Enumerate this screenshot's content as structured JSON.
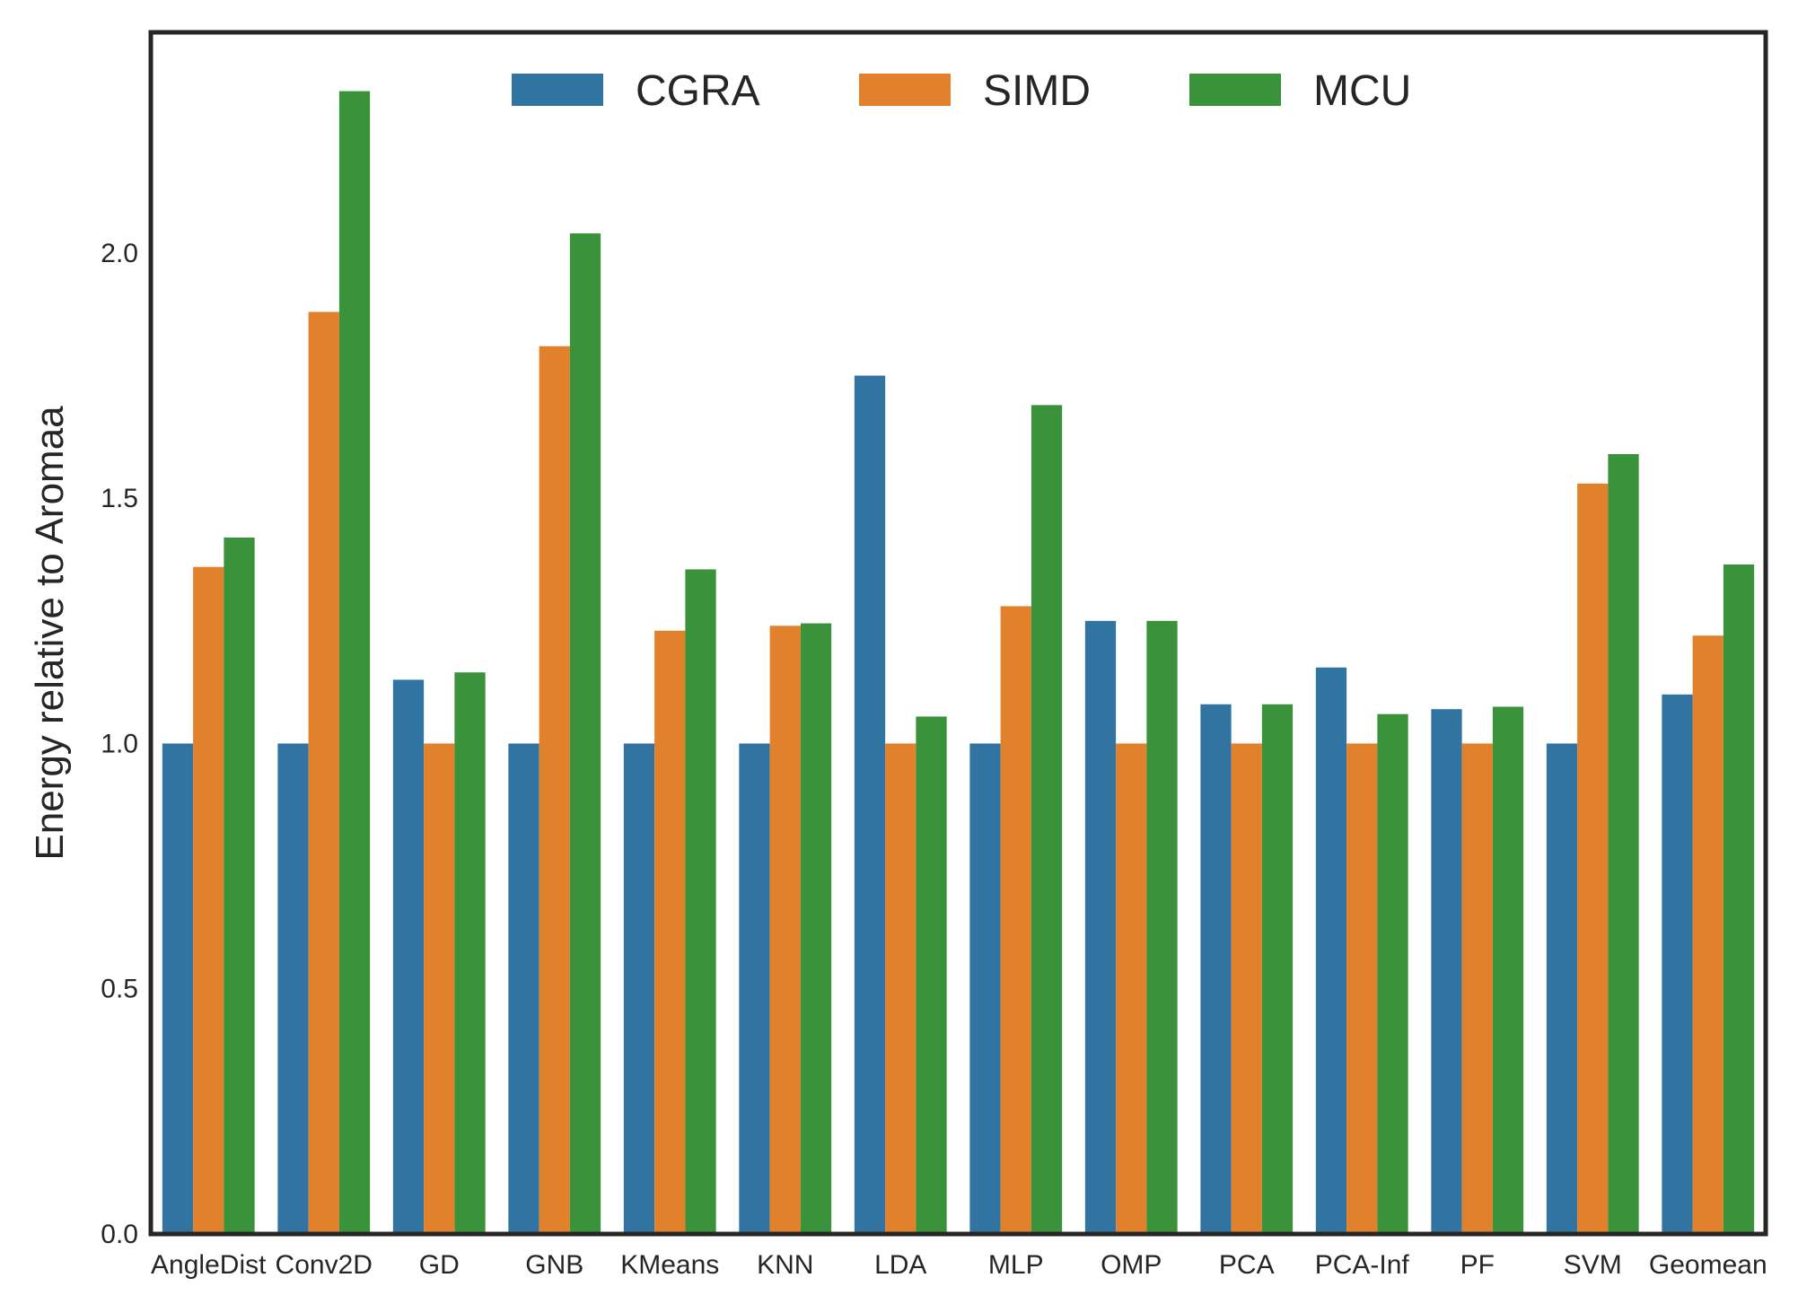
{
  "chart_data": {
    "type": "bar",
    "title": "",
    "xlabel": "",
    "ylabel": "Energy relative to Aromaa",
    "ylim": [
      0,
      2.45
    ],
    "yticks": [
      "0.0",
      "0.5",
      "1.0",
      "1.5",
      "2.0"
    ],
    "grid": false,
    "legend_position": "top-center",
    "categories": [
      "AngleDist",
      "Conv2D",
      "GD",
      "GNB",
      "KMeans",
      "KNN",
      "LDA",
      "MLP",
      "OMP",
      "PCA",
      "PCA-Inf",
      "PF",
      "SVM",
      "Geomean"
    ],
    "series": [
      {
        "name": "CGRA",
        "color": "#3274a1",
        "values": [
          1.0,
          1.0,
          1.13,
          1.0,
          1.0,
          1.0,
          1.75,
          1.0,
          1.25,
          1.08,
          1.155,
          1.07,
          1.0,
          1.1
        ]
      },
      {
        "name": "SIMD",
        "color": "#e1812c",
        "values": [
          1.36,
          1.88,
          1.0,
          1.81,
          1.23,
          1.24,
          1.0,
          1.28,
          1.0,
          1.0,
          1.0,
          1.0,
          1.53,
          1.22
        ]
      },
      {
        "name": "MCU",
        "color": "#3a923a",
        "values": [
          1.42,
          2.33,
          1.145,
          2.04,
          1.355,
          1.245,
          1.055,
          1.69,
          1.25,
          1.08,
          1.06,
          1.075,
          1.59,
          1.365
        ]
      }
    ]
  }
}
